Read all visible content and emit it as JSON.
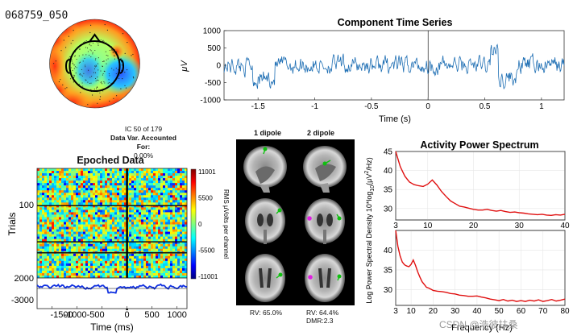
{
  "figure": {
    "dataset_id": "068759_050",
    "watermark": "CSDN @浩彼扶桑"
  },
  "component": {
    "ic_line": "IC 50 of 179",
    "var_label": "Data Var. Accounted For:",
    "var_value": "0.00%"
  },
  "colors": {
    "trace": "#1f6fb4",
    "spectrum": "#e01010",
    "erp": "#1030e0"
  },
  "chart_data": [
    {
      "id": "component_time_series",
      "type": "line",
      "title": "Component Time Series",
      "xlabel": "Time (s)",
      "ylabel": "μV",
      "xlim": [
        -1.8,
        1.2
      ],
      "ylim": [
        -1000,
        1000
      ],
      "xticks": [
        -1.5,
        -1,
        -0.5,
        0,
        0.5,
        1
      ],
      "xtick_labels": [
        "-1.5",
        "-1",
        "-0.5",
        "0",
        "0.5",
        "1"
      ],
      "yticks": [
        1000,
        500,
        0,
        -500,
        -1000
      ],
      "ytick_labels": [
        "1000",
        "500",
        "0",
        "-500",
        "-1000"
      ],
      "vertical_markers": [
        0
      ],
      "samples": 256,
      "approx_range": [
        -980,
        600
      ]
    },
    {
      "id": "epoched_data",
      "type": "heatmap",
      "title": "Epoched Data",
      "xlabel": "Time (ms)",
      "ylabel": "Trials",
      "yticks": [
        100,
        2000
      ],
      "ytick_labels": [
        "100",
        "2000"
      ],
      "erp_ytick_labels": [
        "-3000"
      ],
      "xtick_labels": [
        "-1500",
        "-1000",
        "-500",
        "0",
        "500",
        "1000"
      ],
      "colorbar_ticks": [
        "11001",
        "5500",
        "0",
        "-5500",
        "-11001"
      ],
      "colorbar_label": "RMS μVolts per channel",
      "colorbar_range": [
        -11001,
        11001
      ],
      "time_range_ms": [
        -1800,
        1200
      ]
    },
    {
      "id": "activity_power_spectrum",
      "type": "line",
      "title": "Activity Power Spectrum",
      "ylabel": "Log Power Spectral Density 10*log10(μV²/Hz)",
      "ylabel_parts": [
        "Log Power Spectral Density 10*log",
        "10",
        "(μV",
        "2",
        "/Hz)"
      ],
      "xlabel": "Frequency (Hz)",
      "panels": [
        {
          "xlim": [
            3,
            40
          ],
          "ylim": [
            27,
            45
          ],
          "xticks": [
            3,
            10,
            20,
            30,
            40
          ],
          "xtick_labels": [
            "3",
            "10",
            "20",
            "30",
            "40"
          ],
          "yticks": [
            45,
            40,
            35,
            30
          ],
          "ytick_labels": [
            "45",
            "40",
            "35",
            "30"
          ],
          "x": [
            3,
            4,
            5,
            6,
            7,
            8,
            9,
            10,
            11,
            12,
            13,
            14,
            15,
            16,
            17,
            18,
            19,
            20,
            21,
            22,
            23,
            24,
            25,
            26,
            27,
            28,
            29,
            30,
            31,
            32,
            33,
            34,
            35,
            36,
            37,
            38,
            39,
            40
          ],
          "y": [
            45,
            41,
            38.5,
            37,
            36.3,
            36,
            35.8,
            36.4,
            37.5,
            36.2,
            34.5,
            33.2,
            32,
            31.3,
            30.6,
            30.4,
            30.1,
            29.8,
            29.6,
            29.6,
            29.8,
            29.5,
            29.3,
            29.5,
            29.2,
            29,
            29.1,
            28.9,
            28.8,
            28.6,
            28.5,
            28.4,
            28.5,
            28.3,
            28.2,
            28.4,
            28.3,
            28.5
          ]
        },
        {
          "xlim": [
            3,
            80
          ],
          "ylim": [
            26,
            45
          ],
          "xticks": [
            3,
            10,
            20,
            30,
            40,
            50,
            60,
            70,
            80
          ],
          "xtick_labels": [
            "3",
            "10",
            "20",
            "30",
            "40",
            "50",
            "60",
            "70",
            "80"
          ],
          "yticks": [
            40,
            35,
            30
          ],
          "ytick_labels": [
            "40",
            "35",
            "30"
          ],
          "x": [
            3,
            4,
            5,
            6,
            7,
            8,
            9,
            10,
            11,
            12,
            13,
            14,
            15,
            16,
            17,
            18,
            19,
            20,
            22,
            24,
            26,
            28,
            30,
            32,
            34,
            36,
            38,
            40,
            42,
            44,
            46,
            48,
            50,
            52,
            54,
            56,
            58,
            60,
            62,
            64,
            66,
            68,
            70,
            72,
            74,
            76,
            78,
            80
          ],
          "y": [
            45,
            41,
            38.5,
            37,
            36.3,
            36,
            35.8,
            36.4,
            37.5,
            36.2,
            34.5,
            33.2,
            32,
            31.3,
            30.6,
            30.4,
            30.1,
            29.8,
            29.6,
            29.5,
            29.3,
            29,
            28.9,
            28.6,
            28.5,
            28.3,
            28.3,
            28.4,
            28.1,
            27.9,
            27.6,
            27.4,
            27.2,
            27.5,
            27.1,
            27.3,
            27.0,
            27.2,
            27.0,
            27.3,
            27.1,
            27.4,
            27.0,
            27.2,
            27.5,
            27.1,
            27.3,
            27.6
          ]
        }
      ]
    }
  ],
  "dipole": {
    "col1_title": "1 dipole",
    "col2_title": "2 dipole",
    "rv1": "RV: 65.0%",
    "rv2": "RV: 64.4%",
    "dmr": "DMR:2.3"
  }
}
